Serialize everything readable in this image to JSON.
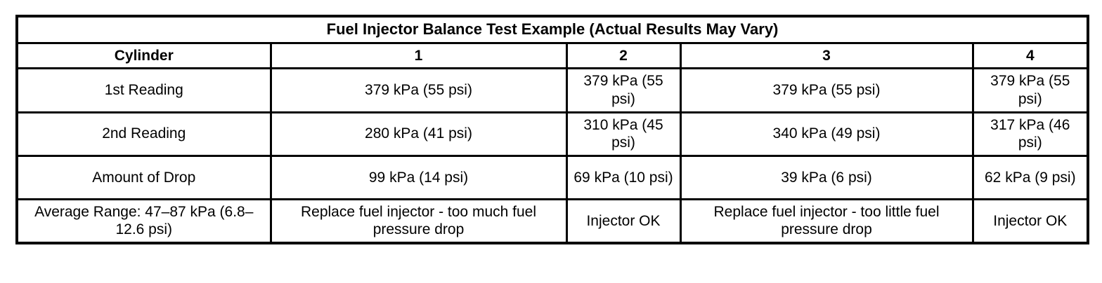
{
  "table": {
    "title": "Fuel Injector Balance Test Example (Actual Results May Vary)",
    "header": [
      "Cylinder",
      "1",
      "2",
      "3",
      "4"
    ],
    "rows": [
      [
        "1st Reading",
        "379 kPa (55 psi)",
        "379 kPa (55 psi)",
        "379 kPa (55 psi)",
        "379 kPa (55 psi)"
      ],
      [
        "2nd Reading",
        "280 kPa (41 psi)",
        "310 kPa (45 psi)",
        "340 kPa (49 psi)",
        "317 kPa (46 psi)"
      ],
      [
        "Amount of Drop",
        "99 kPa (14 psi)",
        "69 kPa (10 psi)",
        "39 kPa (6 psi)",
        "62 kPa (9 psi)"
      ],
      [
        "Average Range: 47–87 kPa (6.8–12.6 psi)",
        "Replace fuel injector - too much fuel pressure drop",
        "Injector OK",
        "Replace fuel injector - too little fuel pressure drop",
        "Injector OK"
      ]
    ]
  }
}
